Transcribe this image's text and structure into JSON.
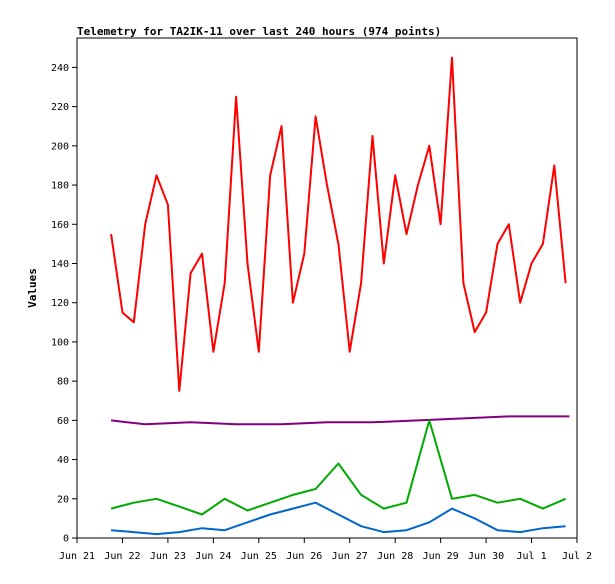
{
  "chart_data": {
    "type": "line",
    "title": "Telemetry for TA2IK-11 over last 240 hours (974 points)",
    "ylabel": "Values",
    "xlabel": "",
    "ylim": [
      0,
      255
    ],
    "xlim": [
      "2019-06-21",
      "2019-07-02"
    ],
    "yticks": [
      0,
      20,
      40,
      60,
      80,
      100,
      120,
      140,
      160,
      180,
      200,
      220,
      240
    ],
    "xticks": [
      {
        "date": "2019-06-21",
        "label": "Jun 21"
      },
      {
        "date": "2019-06-22",
        "label": "Jun 22"
      },
      {
        "date": "2019-06-23",
        "label": "Jun 23"
      },
      {
        "date": "2019-06-24",
        "label": "Jun 24"
      },
      {
        "date": "2019-06-25",
        "label": "Jun 25"
      },
      {
        "date": "2019-06-26",
        "label": "Jun 26"
      },
      {
        "date": "2019-06-27",
        "label": "Jun 27"
      },
      {
        "date": "2019-06-28",
        "label": "Jun 28"
      },
      {
        "date": "2019-06-29",
        "label": "Jun 29"
      },
      {
        "date": "2019-06-30",
        "label": "Jun 30"
      },
      {
        "date": "2019-07-01",
        "label": "Jul 1"
      },
      {
        "date": "2019-07-02",
        "label": "Jul 2"
      }
    ],
    "grid": false,
    "legend": "none",
    "series": [
      {
        "color": "#ff0000",
        "x": [
          "2019-06-21 18:00",
          "2019-06-22 00:00",
          "2019-06-22 06:00",
          "2019-06-22 12:00",
          "2019-06-22 18:00",
          "2019-06-23 00:00",
          "2019-06-23 06:00",
          "2019-06-23 12:00",
          "2019-06-23 18:00",
          "2019-06-24 00:00",
          "2019-06-24 06:00",
          "2019-06-24 12:00",
          "2019-06-24 18:00",
          "2019-06-25 00:00",
          "2019-06-25 06:00",
          "2019-06-25 12:00",
          "2019-06-25 18:00",
          "2019-06-26 00:00",
          "2019-06-26 06:00",
          "2019-06-26 12:00",
          "2019-06-26 18:00",
          "2019-06-27 00:00",
          "2019-06-27 06:00",
          "2019-06-27 12:00",
          "2019-06-27 18:00",
          "2019-06-28 00:00",
          "2019-06-28 06:00",
          "2019-06-28 12:00",
          "2019-06-28 18:00",
          "2019-06-29 00:00",
          "2019-06-29 06:00",
          "2019-06-29 12:00",
          "2019-06-29 18:00",
          "2019-06-30 00:00",
          "2019-06-30 06:00",
          "2019-06-30 12:00",
          "2019-06-30 18:00",
          "2019-07-01 00:00",
          "2019-07-01 06:00",
          "2019-07-01 12:00",
          "2019-07-01 18:00"
        ],
        "values": [
          155,
          115,
          110,
          160,
          185,
          170,
          75,
          135,
          145,
          95,
          130,
          225,
          140,
          95,
          185,
          210,
          120,
          145,
          215,
          180,
          150,
          95,
          130,
          205,
          140,
          185,
          155,
          180,
          200,
          160,
          245,
          130,
          105,
          115,
          150,
          160,
          120,
          140,
          150,
          190,
          130
        ]
      },
      {
        "color": "#800080",
        "x": [
          "2019-06-21 18:00",
          "2019-06-22 12:00",
          "2019-06-23 12:00",
          "2019-06-24 12:00",
          "2019-06-25 12:00",
          "2019-06-26 12:00",
          "2019-06-27 12:00",
          "2019-06-28 12:00",
          "2019-06-29 12:00",
          "2019-06-30 12:00",
          "2019-07-01 12:00",
          "2019-07-01 20:00"
        ],
        "values": [
          60,
          58,
          59,
          58,
          58,
          59,
          59,
          60,
          61,
          62,
          62,
          62
        ]
      },
      {
        "color": "#00aa00",
        "x": [
          "2019-06-21 18:00",
          "2019-06-22 06:00",
          "2019-06-22 18:00",
          "2019-06-23 06:00",
          "2019-06-23 18:00",
          "2019-06-24 06:00",
          "2019-06-24 18:00",
          "2019-06-25 06:00",
          "2019-06-25 18:00",
          "2019-06-26 06:00",
          "2019-06-26 18:00",
          "2019-06-27 06:00",
          "2019-06-27 18:00",
          "2019-06-28 06:00",
          "2019-06-28 18:00",
          "2019-06-29 06:00",
          "2019-06-29 18:00",
          "2019-06-30 06:00",
          "2019-06-30 18:00",
          "2019-07-01 06:00",
          "2019-07-01 18:00"
        ],
        "values": [
          15,
          18,
          20,
          16,
          12,
          20,
          14,
          18,
          22,
          25,
          38,
          22,
          15,
          18,
          60,
          20,
          22,
          18,
          20,
          15,
          20
        ]
      },
      {
        "color": "#0066cc",
        "x": [
          "2019-06-21 18:00",
          "2019-06-22 06:00",
          "2019-06-22 18:00",
          "2019-06-23 06:00",
          "2019-06-23 18:00",
          "2019-06-24 06:00",
          "2019-06-24 18:00",
          "2019-06-25 06:00",
          "2019-06-25 18:00",
          "2019-06-26 06:00",
          "2019-06-26 18:00",
          "2019-06-27 06:00",
          "2019-06-27 18:00",
          "2019-06-28 06:00",
          "2019-06-28 18:00",
          "2019-06-29 06:00",
          "2019-06-29 18:00",
          "2019-06-30 06:00",
          "2019-06-30 18:00",
          "2019-07-01 06:00",
          "2019-07-01 18:00"
        ],
        "values": [
          4,
          3,
          2,
          3,
          5,
          4,
          8,
          12,
          15,
          18,
          12,
          6,
          3,
          4,
          8,
          15,
          10,
          4,
          3,
          5,
          6
        ]
      }
    ]
  }
}
